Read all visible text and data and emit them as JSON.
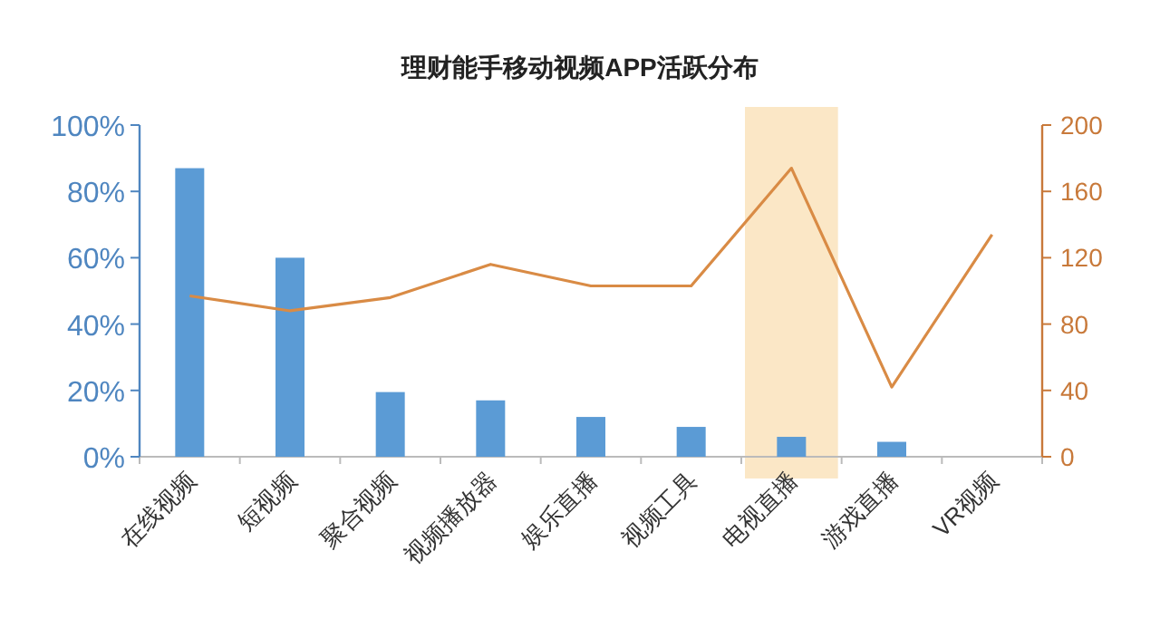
{
  "chart_data": {
    "type": "bar",
    "title": "理财能手移动视频APP活跃分布",
    "categories": [
      "在线视频",
      "短视频",
      "聚合视频",
      "视频播放器",
      "娱乐直播",
      "视频工具",
      "电视直播",
      "游戏直播",
      "VR视频"
    ],
    "series": [
      {
        "color": "#5b9bd5",
        "values": [
          87,
          60,
          19.5,
          17,
          12,
          9,
          6,
          4.5,
          null
        ]
      },
      {
        "type": "line",
        "axis": "y2",
        "color": "#d98b45",
        "values": [
          97,
          88,
          96,
          116,
          103,
          103,
          174,
          42,
          134
        ]
      }
    ],
    "ylim": [
      0,
      100
    ],
    "yticks": [
      {
        "value": 0,
        "label": "0%"
      },
      {
        "value": 20,
        "label": "20%"
      },
      {
        "value": 40,
        "label": "40%"
      },
      {
        "value": 60,
        "label": "60%"
      },
      {
        "value": 80,
        "label": "80%"
      },
      {
        "value": 100,
        "label": "100%"
      }
    ],
    "y2lim": [
      0,
      200
    ],
    "y2ticks": [
      0,
      40,
      80,
      120,
      160,
      200
    ],
    "bands": [
      {
        "axis": "x",
        "from": "电视直播",
        "to": "电视直播",
        "color": "#fbe7c6"
      }
    ],
    "grid": false,
    "marker": "none",
    "line_style": "solid"
  }
}
